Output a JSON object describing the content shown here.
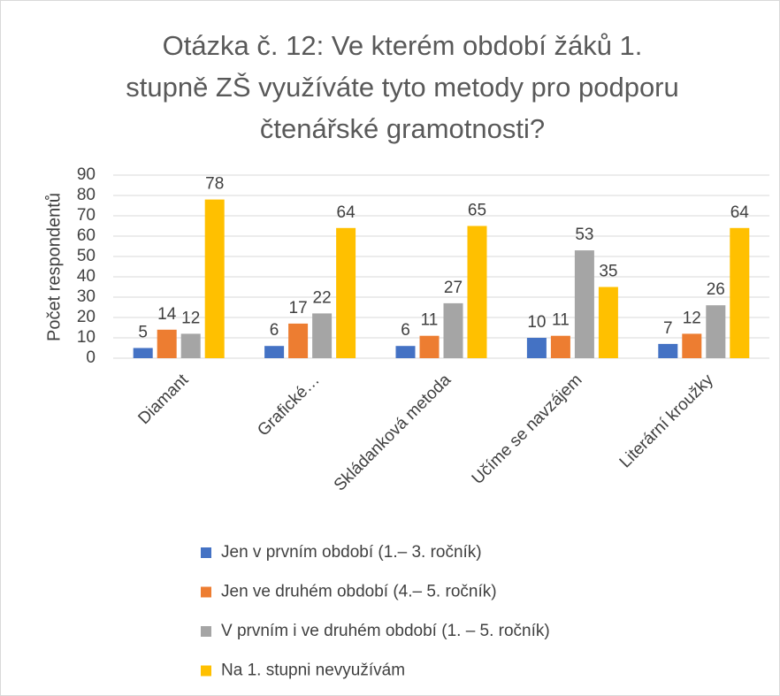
{
  "chart_data": {
    "type": "bar",
    "title": [
      "Otázka č. 12: Ve kterém období žáků 1.",
      "stupně ZŠ využíváte tyto metody pro podporu",
      "čtenářské gramotnosti?"
    ],
    "y_label": "Počet respondentů",
    "categories": [
      "Diamant",
      "Grafické…",
      "Skládanková metoda",
      "Učíme se navzájem",
      "Literární kroužky"
    ],
    "series": [
      {
        "name": "Jen v prvním období (1.– 3. ročník)",
        "color": "#4472c4",
        "values": [
          5,
          6,
          6,
          10,
          7
        ]
      },
      {
        "name": "Jen ve druhém období (4.– 5. ročník)",
        "color": "#ed7d31",
        "values": [
          14,
          17,
          11,
          11,
          12
        ]
      },
      {
        "name": "V prvním i ve druhém období (1. – 5. ročník)",
        "color": "#a5a5a5",
        "values": [
          12,
          22,
          27,
          53,
          26
        ]
      },
      {
        "name": "Na 1. stupni nevyužívám",
        "color": "#ffc000",
        "values": [
          78,
          64,
          65,
          35,
          64
        ]
      }
    ],
    "ylim": [
      0,
      90
    ],
    "yticks": [
      0,
      10,
      20,
      30,
      40,
      50,
      60,
      70,
      80,
      90
    ],
    "grid": true,
    "legend": "bottom"
  }
}
